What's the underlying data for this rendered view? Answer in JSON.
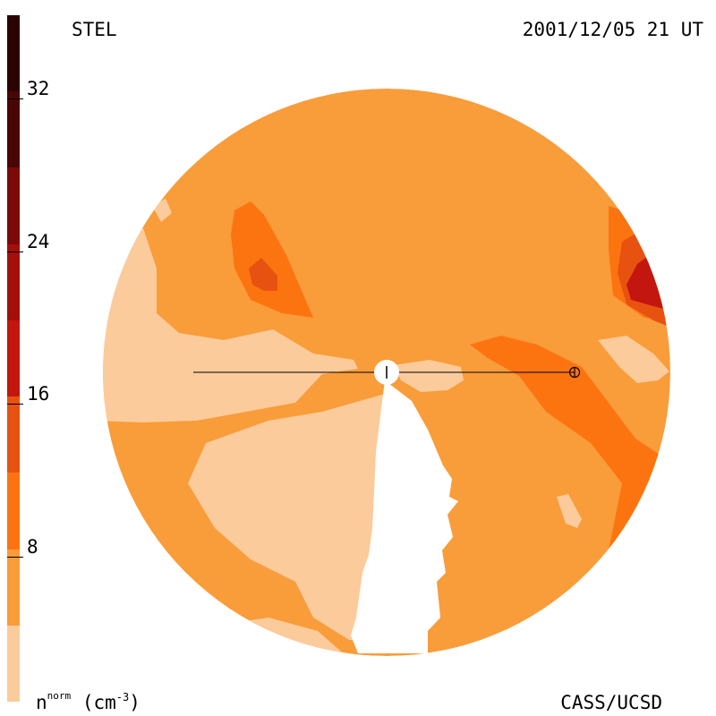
{
  "header": {
    "title": "STEL",
    "timestamp": "2001/12/05 21 UT"
  },
  "footer": {
    "credit": "CASS/UCSD",
    "unit_base": "n",
    "unit_sup": "norm",
    "unit_paren_open": "(cm",
    "unit_exp": "-3",
    "unit_paren_close": ")"
  },
  "colorbar": {
    "range": [
      0,
      36
    ],
    "ticks": [
      "32",
      "24",
      "16",
      "8"
    ],
    "tick_values": [
      32,
      24,
      16,
      8
    ],
    "levels": [
      {
        "from": 0,
        "to": 4,
        "color": "#FCCB9B"
      },
      {
        "from": 4,
        "to": 8,
        "color": "#F99C3A"
      },
      {
        "from": 8,
        "to": 12,
        "color": "#FC7410"
      },
      {
        "from": 12,
        "to": 16,
        "color": "#E85210"
      },
      {
        "from": 16,
        "to": 20,
        "color": "#C2160E"
      },
      {
        "from": 20,
        "to": 24,
        "color": "#A40F0A"
      },
      {
        "from": 24,
        "to": 28,
        "color": "#7A0A08"
      },
      {
        "from": 28,
        "to": 32,
        "color": "#4A0505"
      },
      {
        "from": 32,
        "to": 36,
        "color": "#2A0303"
      }
    ]
  },
  "map": {
    "background_color": "#F99C3A",
    "light_color": "#FCCB9B",
    "mid_color": "#FC7410",
    "high_color": "#E85210",
    "peak_color": "#C2160E",
    "markers": [
      "sun-marker",
      "earth-marker"
    ]
  }
}
